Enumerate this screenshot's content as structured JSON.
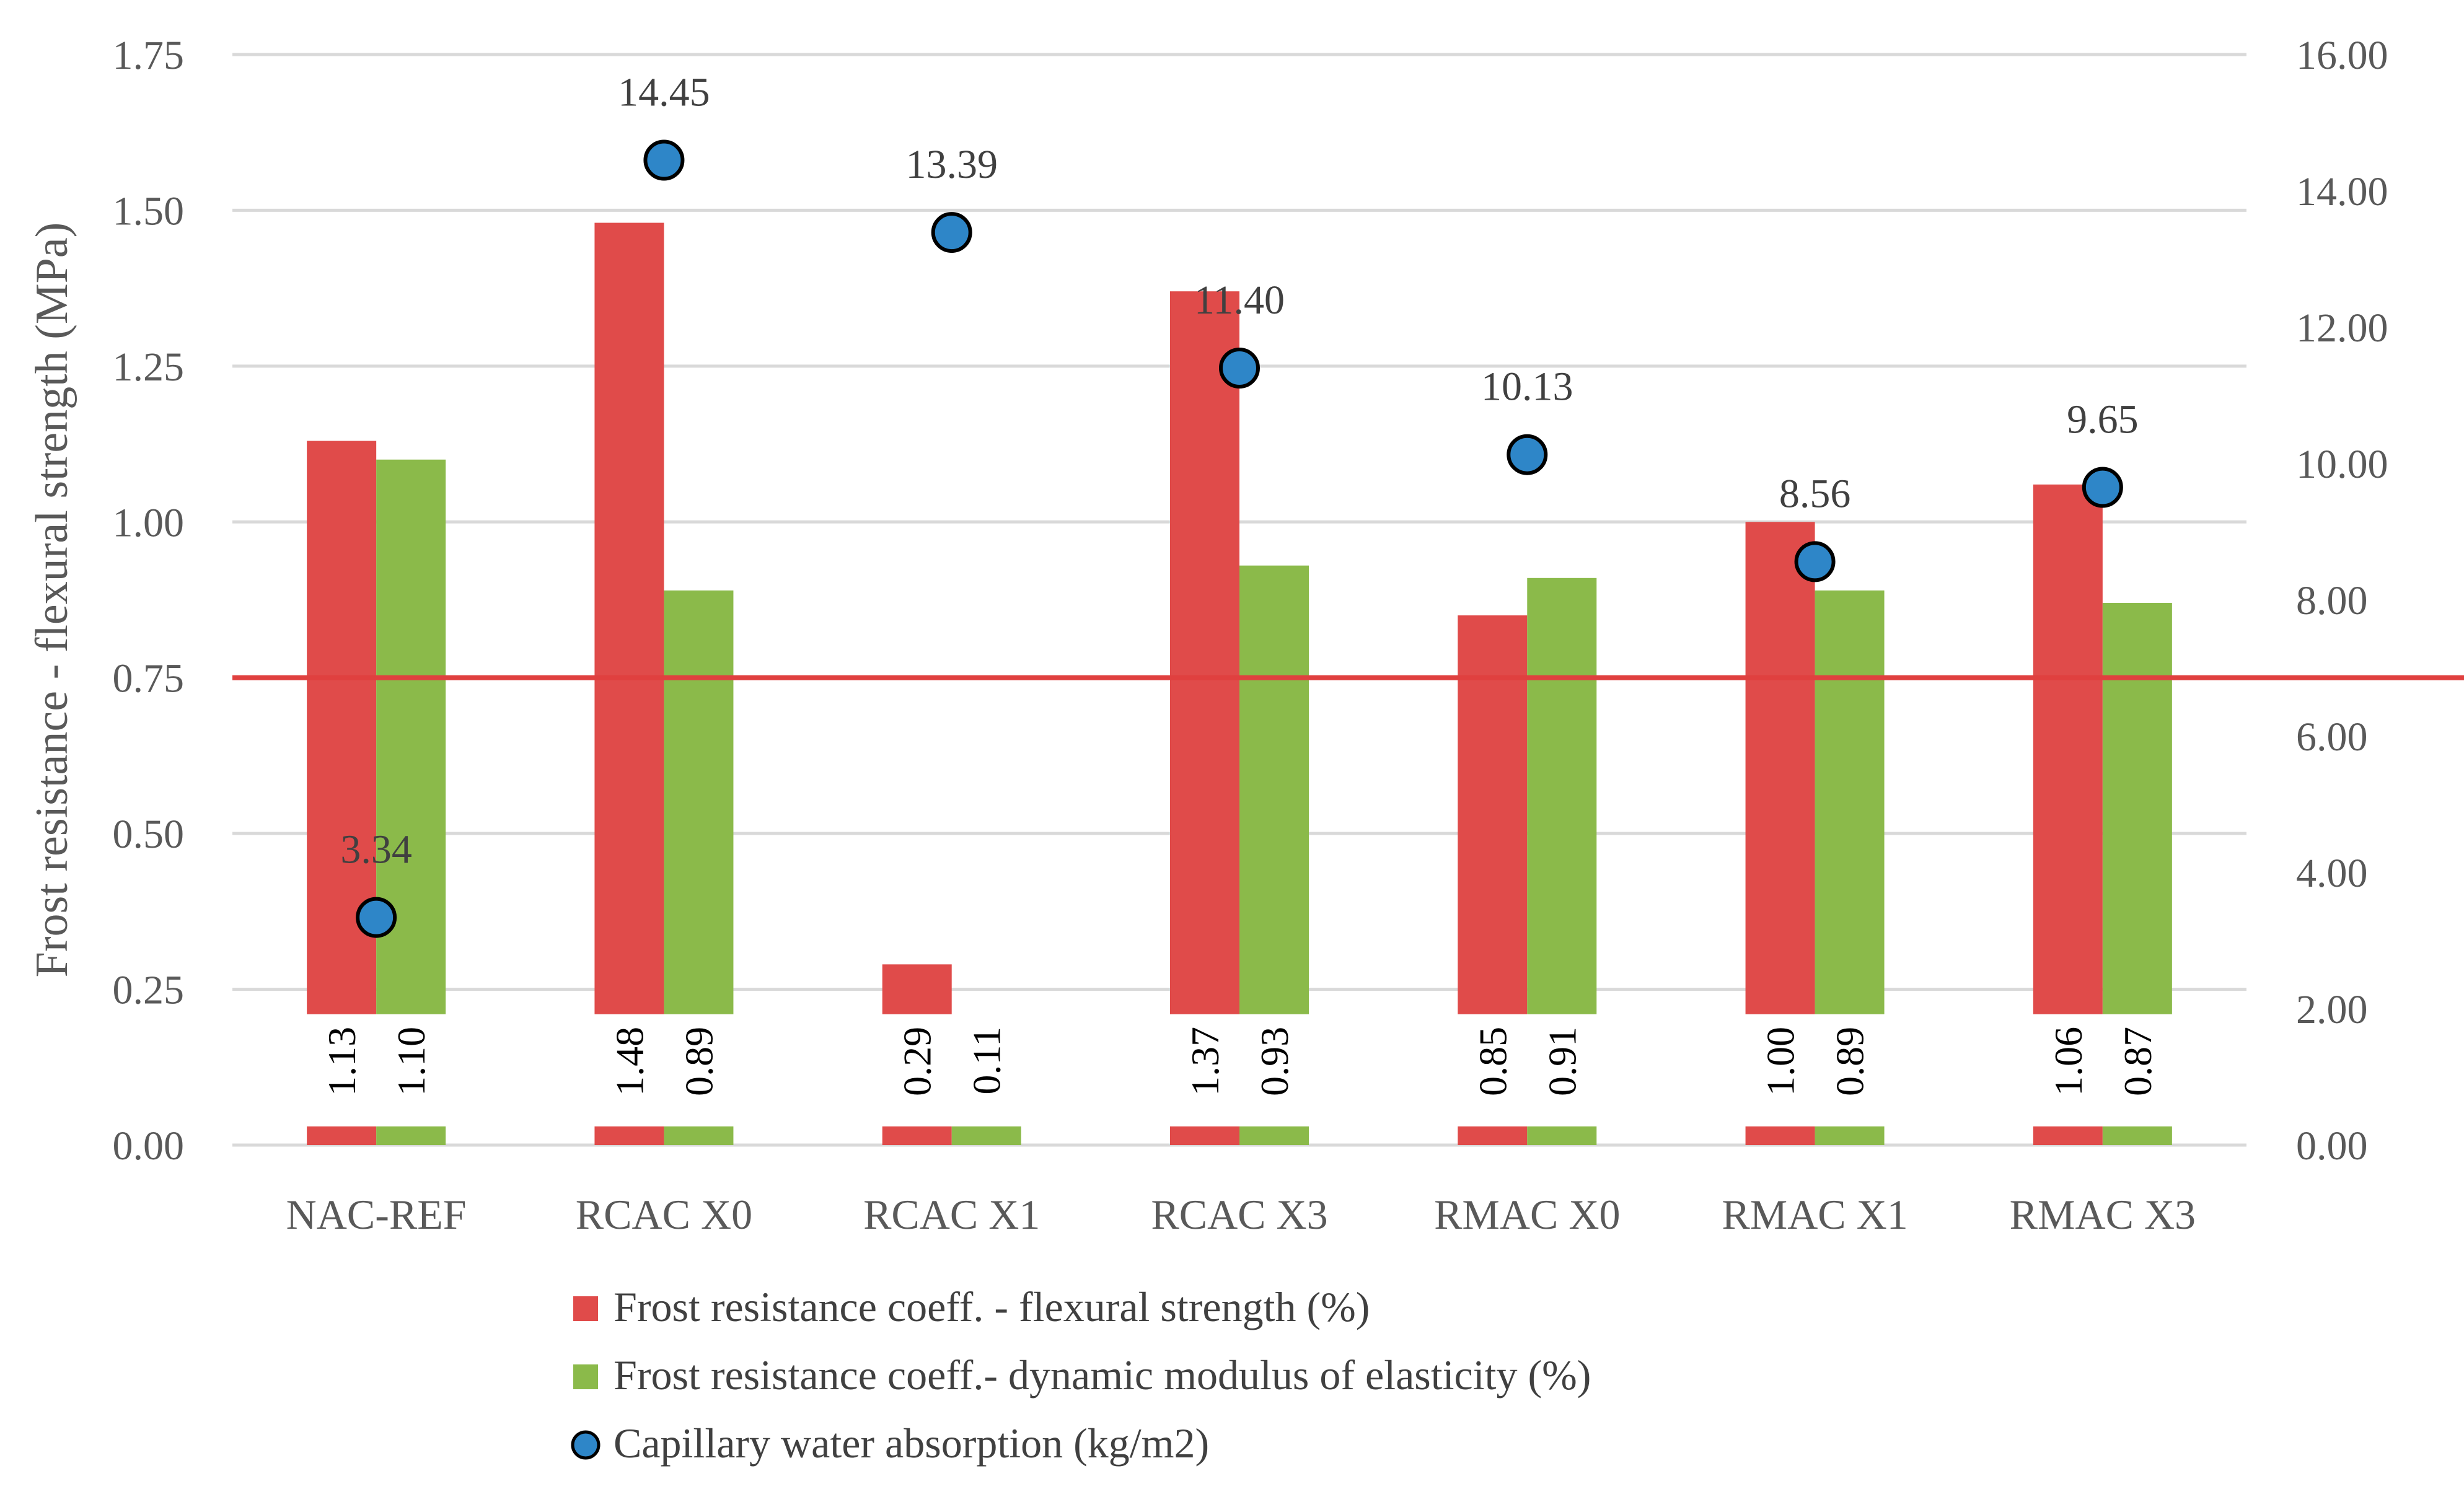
{
  "chart_data": {
    "type": "bar",
    "categories": [
      "NAC-REF",
      "RCAC X0",
      "RCAC X1",
      "RCAC X3",
      "RMAC X0",
      "RMAC X1",
      "RMAC X3"
    ],
    "series": [
      {
        "name": "Frost resistance coeff. - flexural strength  (%)",
        "kind": "bar",
        "axis": "left",
        "color": "#E04B4A",
        "values": [
          1.13,
          1.48,
          0.29,
          1.37,
          0.85,
          1.0,
          1.06
        ],
        "labels": [
          "1.13",
          "1.48",
          "0.29",
          "1.37",
          "0.85",
          "1.00",
          "1.06"
        ]
      },
      {
        "name": "Frost resistance coeff.- dynamic modulus of elasticity  (%)",
        "kind": "bar",
        "axis": "left",
        "color": "#8BBA4A",
        "values": [
          1.1,
          0.89,
          0.11,
          0.93,
          0.91,
          0.89,
          0.87
        ],
        "labels": [
          "1.10",
          "0.89",
          "0.11",
          "0.93",
          "0.91",
          "0.89",
          "0.87"
        ]
      },
      {
        "name": "Capillary water absorption (kg/m2)",
        "kind": "scatter",
        "axis": "right",
        "color": "#2E86C8",
        "values": [
          3.34,
          14.45,
          13.39,
          11.4,
          10.13,
          8.56,
          9.65
        ],
        "labels": [
          "3.34",
          "14.45",
          "13.39",
          "11.40",
          "10.13",
          "8.56",
          "9.65"
        ]
      }
    ],
    "ylabel": "Frost resistance - flexural strength (MPa)",
    "ylim": [
      0,
      1.75
    ],
    "yticks": [
      "0.00",
      "0.25",
      "0.50",
      "0.75",
      "1.00",
      "1.25",
      "1.50",
      "1.75"
    ],
    "y2lim": [
      0,
      16
    ],
    "y2ticks": [
      "0.00",
      "2.00",
      "4.00",
      "6.00",
      "8.00",
      "10.00",
      "12.00",
      "14.00",
      "16.00"
    ],
    "reference_line": {
      "value": 0.75,
      "color": "#E0403F"
    },
    "bar_label_band": [
      0.03,
      0.21
    ],
    "grid": "horizontal",
    "legend_position": "bottom"
  }
}
